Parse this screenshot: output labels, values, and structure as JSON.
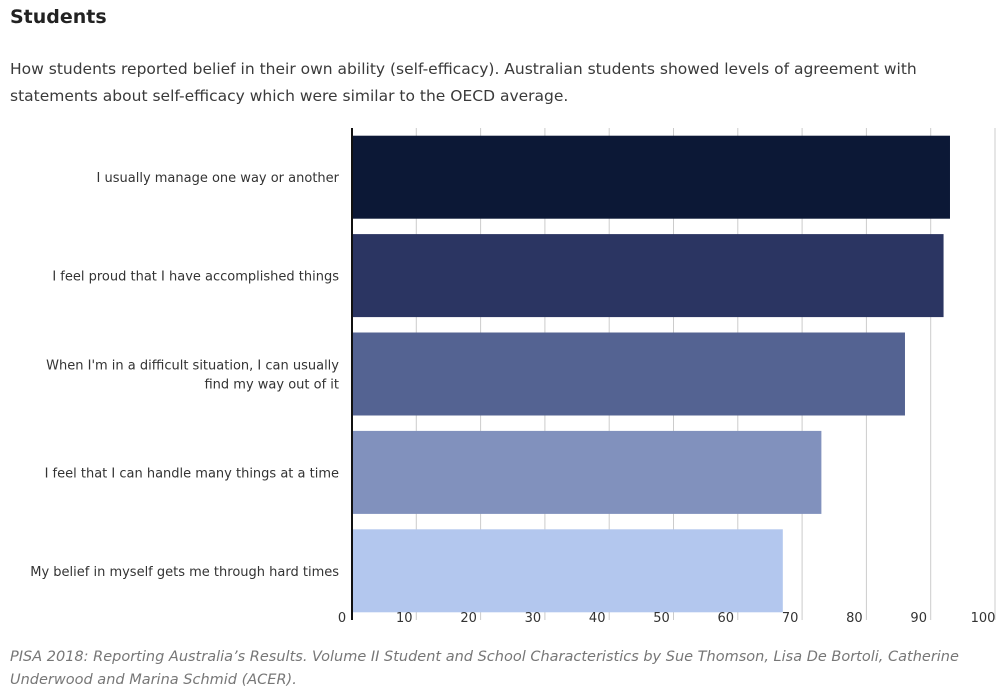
{
  "title": "Students",
  "subtitle": "How students reported belief in their own ability (self-efficacy).  Australian students showed levels of agreement with statements about self-efficacy which were similar to the OECD average.",
  "source": "PISA 2018: Reporting Australia’s Results. Volume II Student and School Characteristics by Sue Thomson, Lisa De Bortoli, Catherine Underwood and Marina Schmid (ACER).",
  "chart_data": {
    "type": "bar",
    "orientation": "horizontal",
    "categories": [
      [
        "I usually manage one way or another"
      ],
      [
        "I feel proud that I have accomplished things"
      ],
      [
        "When I'm in a difficult situation, I can usually",
        "find my way out of it"
      ],
      [
        "I feel that I can handle many things at a time"
      ],
      [
        "My belief in myself gets me through hard times"
      ]
    ],
    "values": [
      93,
      92,
      86,
      73,
      67
    ],
    "colors": [
      "#0c1836",
      "#2b3562",
      "#546392",
      "#8191bd",
      "#b3c7ee"
    ],
    "xlim": [
      0,
      100
    ],
    "xticks": [
      "0",
      "10",
      "20",
      "30",
      "40",
      "50",
      "60",
      "70",
      "80",
      "90",
      "100"
    ],
    "grid": true,
    "legend": "none"
  }
}
